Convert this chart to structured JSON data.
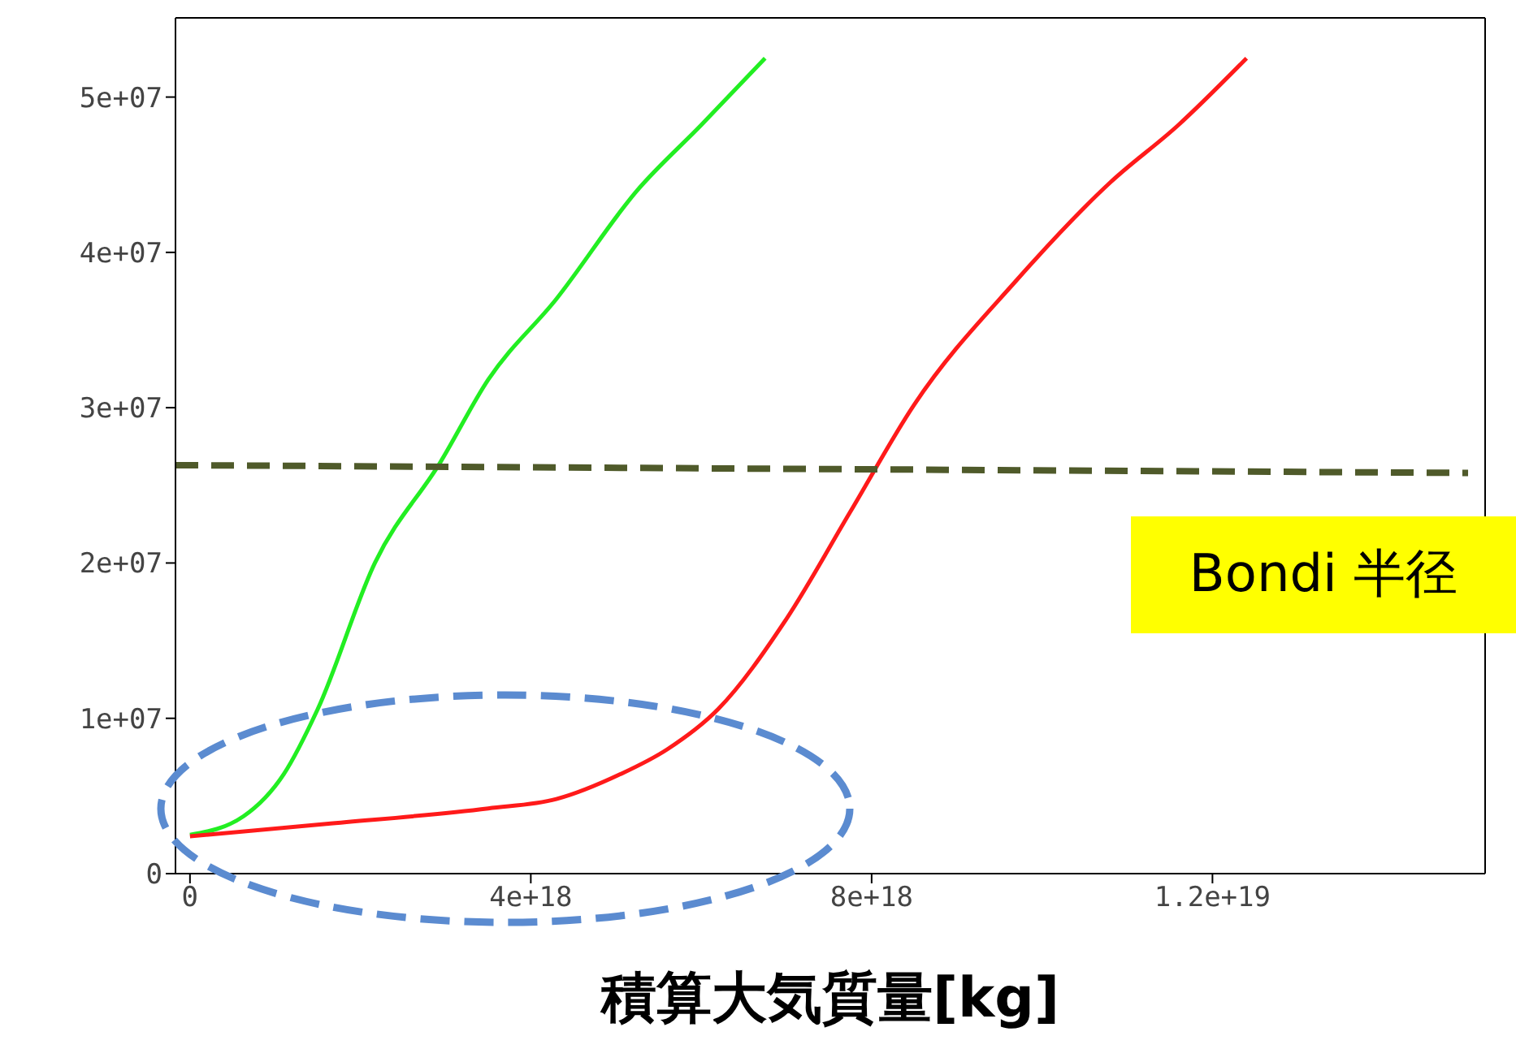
{
  "chart_data": {
    "type": "line",
    "xlabel": "積算大気質量[kg]",
    "xlim": [
      -1.7e+17,
      1.52e+19
    ],
    "ylim": [
      0,
      55100000.0
    ],
    "xticks": [
      {
        "value": 0,
        "label": "0"
      },
      {
        "value": 4e+18,
        "label": "4e+18"
      },
      {
        "value": 8e+18,
        "label": "8e+18"
      },
      {
        "value": 1.2e+19,
        "label": "1.2e+19"
      }
    ],
    "yticks": [
      {
        "value": 0,
        "label": "0"
      },
      {
        "value": 10000000.0,
        "label": "1e+07"
      },
      {
        "value": 20000000.0,
        "label": "2e+07"
      },
      {
        "value": 30000000.0,
        "label": "3e+07"
      },
      {
        "value": 40000000.0,
        "label": "4e+07"
      },
      {
        "value": 50000000.0,
        "label": "5e+07"
      }
    ],
    "marker": "none",
    "series": [
      {
        "color": "#22ee22",
        "line_style": "solid",
        "x": [
          0,
          6.3e+17,
          1.1e+18,
          1.5e+18,
          2.17e+18,
          2.94e+18,
          3.5e+18,
          4.3e+18,
          5.25e+18,
          6e+18,
          6.75e+18
        ],
        "values": [
          2500000.0,
          3700000.0,
          6400000.0,
          10600000.0,
          20000000.0,
          26500000.0,
          31800000.0,
          37000000.0,
          44000000.0,
          48200000.0,
          52500000.0
        ]
      },
      {
        "color": "#ff1a1a",
        "line_style": "solid",
        "x": [
          0,
          1.6e+18,
          3.5e+18,
          4.3e+18,
          5.05e+18,
          5.6e+18,
          6.2e+18,
          7e+18,
          7.75e+18,
          8.5e+18,
          9.7e+18,
          1.08e+19,
          1.16e+19,
          1.24e+19
        ],
        "values": [
          2400000.0,
          3200000.0,
          4200000.0,
          4800000.0,
          6400000.0,
          8000000.0,
          10600000.0,
          16400000.0,
          23300000.0,
          30200000.0,
          38200000.0,
          44500000.0,
          48200000.0,
          52500000.0
        ]
      },
      {
        "color": "#4f5a2a",
        "line_style": "dashed",
        "x": [
          -1.7e+17,
          1.5e+19
        ],
        "values": [
          26300000.0,
          25800000.0
        ]
      }
    ],
    "annotations": [
      "Bondi 半径"
    ]
  }
}
